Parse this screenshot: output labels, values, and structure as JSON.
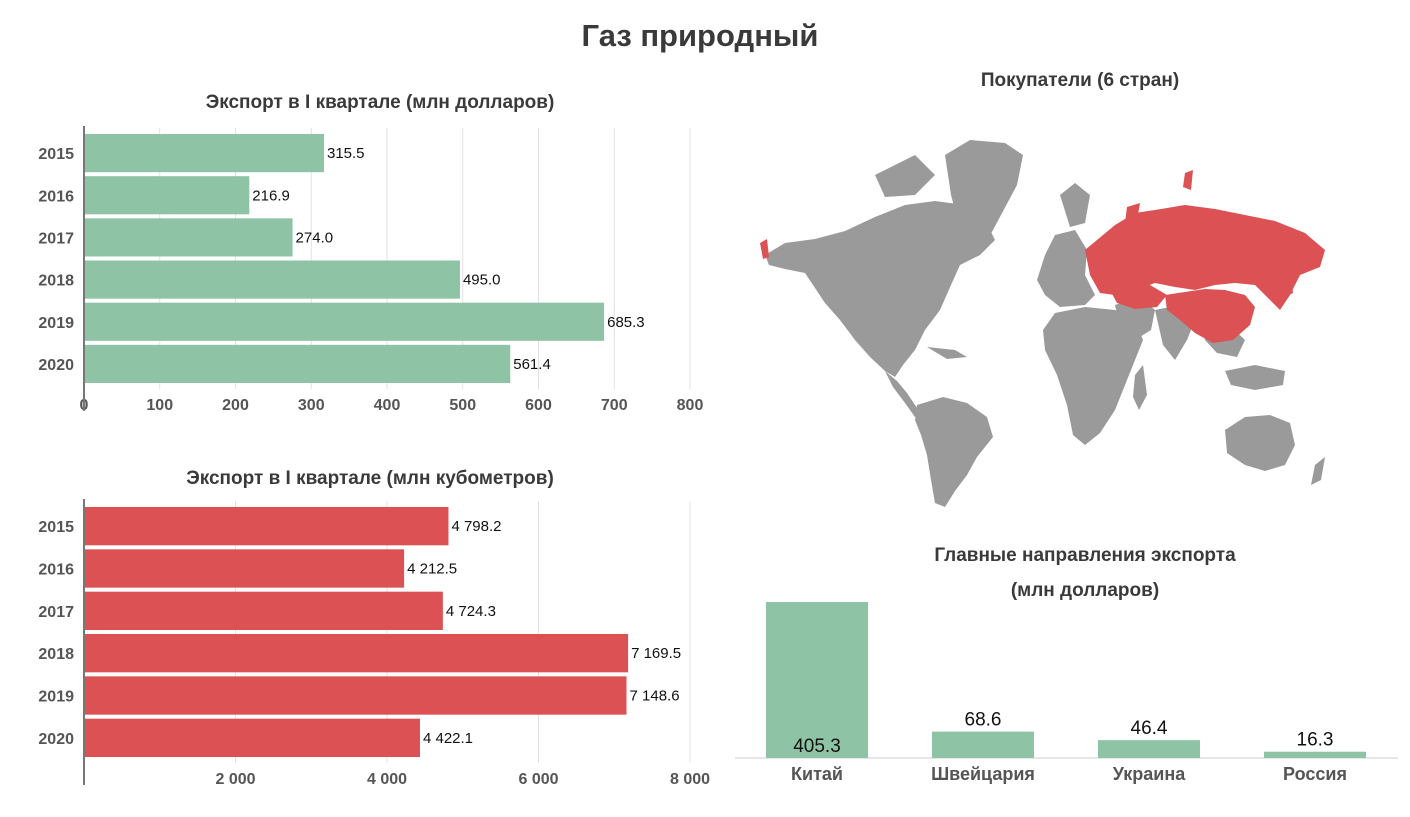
{
  "page": {
    "title": "Газ природный"
  },
  "colors": {
    "green": "#8fc3a5",
    "red": "#dc5154",
    "grey": "#9a9a9a",
    "grid": "#e2e2e2",
    "axis": "#777777"
  },
  "chart_data": [
    {
      "id": "export-usd",
      "type": "bar",
      "orientation": "horizontal",
      "title": "Экспорт в I квартале (млн долларов)",
      "categories": [
        "2015",
        "2016",
        "2017",
        "2018",
        "2019",
        "2020"
      ],
      "values": [
        315.5,
        216.9,
        274.0,
        495.0,
        685.3,
        561.4
      ],
      "value_labels": [
        "315.5",
        "216.9",
        "274.0",
        "495.0",
        "685.3",
        "561.4"
      ],
      "xlim": [
        0,
        800
      ],
      "ticks": [
        0,
        100,
        200,
        300,
        400,
        500,
        600,
        700,
        800
      ],
      "tick_labels": [
        "0",
        "100",
        "200",
        "300",
        "400",
        "500",
        "600",
        "700",
        "800"
      ],
      "color": "#8fc3a5",
      "grid": true
    },
    {
      "id": "export-volume",
      "type": "bar",
      "orientation": "horizontal",
      "title": "Экспорт в I квартале (млн кубометров)",
      "categories": [
        "2015",
        "2016",
        "2017",
        "2018",
        "2019",
        "2020"
      ],
      "values": [
        4798.2,
        4212.5,
        4724.3,
        7169.5,
        7148.6,
        4422.1
      ],
      "value_labels": [
        "4 798.2",
        "4 212.5",
        "4 724.3",
        "7 169.5",
        "7 148.6",
        "4 422.1"
      ],
      "xlim": [
        0,
        8000
      ],
      "ticks": [
        2000,
        4000,
        6000,
        8000
      ],
      "tick_labels": [
        "2 000",
        "4 000",
        "6 000",
        "8 000"
      ],
      "color": "#dc5154",
      "grid": true
    },
    {
      "id": "main-destinations",
      "type": "bar",
      "orientation": "vertical",
      "title_line1": "Главные направления экспорта",
      "title_line2": "(млн долларов)",
      "categories": [
        "Китай",
        "Швейцария",
        "Украина",
        "Россия"
      ],
      "values": [
        405.3,
        68.6,
        46.4,
        16.3
      ],
      "value_labels": [
        "405.3",
        "68.6",
        "46.4",
        "16.3"
      ],
      "ylim": [
        0,
        405.3
      ],
      "color": "#8fc3a5"
    }
  ],
  "map": {
    "title": "Покупатели (6 стран)",
    "highlight_color": "#dc5154",
    "base_color": "#9a9a9a",
    "buyer_regions": [
      "Россия",
      "Китай",
      "Казахстан",
      "Украина",
      "Швейцария",
      "Кыргызстан"
    ]
  }
}
